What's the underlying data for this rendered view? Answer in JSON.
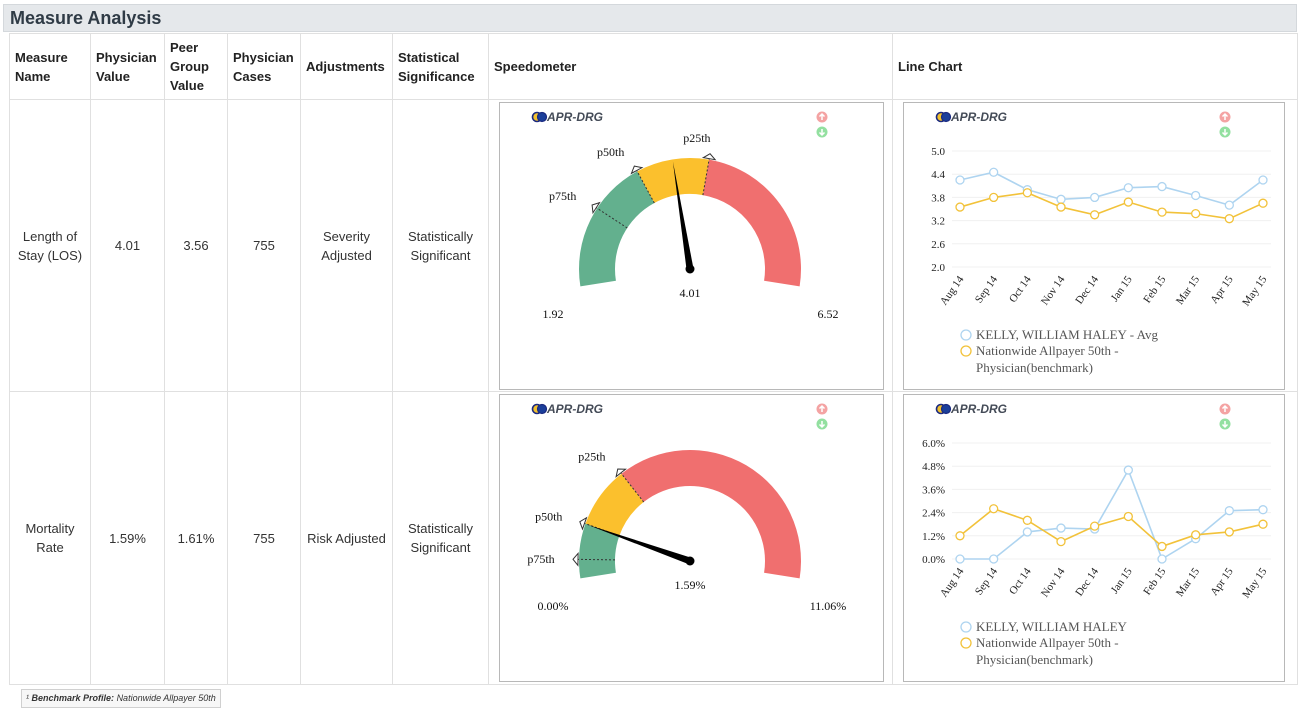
{
  "page_title": "Measure Analysis",
  "columns": {
    "measure_name": "Measure Name",
    "physician_value": "Physician Value",
    "peer_group_value": "Peer Group Value",
    "physician_cases": "Physician Cases",
    "adjustments": "Adjustments",
    "statistical_significance": "Statistical Significance",
    "speedometer": "Speedometer",
    "line_chart": "Line Chart"
  },
  "rows": [
    {
      "measure_name": "Length of Stay (LOS)",
      "physician_value": "4.01",
      "peer_group_value": "3.56",
      "physician_cases": "755",
      "adjustments": "Severity Adjusted",
      "statistical_significance": "Statistically Significant",
      "gauge": {
        "badge": "APR-DRG",
        "min_label": "1.92",
        "max_label": "6.52",
        "value_label": "4.01",
        "min": 1.92,
        "max": 6.52,
        "value": 4.01,
        "markers": [
          {
            "label": "p75th",
            "value": 2.9
          },
          {
            "label": "p50th",
            "value": 3.56
          },
          {
            "label": "p25th",
            "value": 4.45
          }
        ],
        "colors": {
          "green": "#63b08e",
          "yellow": "#fbc02d",
          "red": "#f06f6f"
        }
      },
      "chart_data": {
        "type": "line",
        "badge": "APR-DRG",
        "x": [
          "Aug 14",
          "Sep 14",
          "Oct 14",
          "Nov 14",
          "Dec 14",
          "Jan 15",
          "Feb 15",
          "Mar 15",
          "Apr 15",
          "May 15"
        ],
        "yticks": [
          "5.0",
          "4.4",
          "3.8",
          "3.2",
          "2.6",
          "2.0"
        ],
        "ylim": [
          2.0,
          5.0
        ],
        "series": [
          {
            "name": "KELLY, WILLIAM HALEY - Avg",
            "color": "#aed4f0",
            "values": [
              4.25,
              4.45,
              4.0,
              3.75,
              3.8,
              4.05,
              4.08,
              3.85,
              3.6,
              4.25
            ]
          },
          {
            "name": "Nationwide Allpayer 50th - Physician(benchmark)",
            "color": "#f2c23a",
            "values": [
              3.55,
              3.8,
              3.92,
              3.55,
              3.35,
              3.68,
              3.42,
              3.38,
              3.25,
              3.65
            ]
          }
        ]
      }
    },
    {
      "measure_name": "Mortality Rate",
      "physician_value": "1.59%",
      "peer_group_value": "1.61%",
      "physician_cases": "755",
      "adjustments": "Risk Adjusted",
      "statistical_significance": "Statistically Significant",
      "gauge": {
        "badge": "APR-DRG",
        "min_label": "0.00%",
        "max_label": "11.06%",
        "value_label": "1.59%",
        "min": 0,
        "max": 11.06,
        "value": 1.59,
        "markers": [
          {
            "label": "p75th",
            "value": 0.55
          },
          {
            "label": "p50th",
            "value": 1.6
          },
          {
            "label": "p25th",
            "value": 3.4
          }
        ],
        "colors": {
          "green": "#63b08e",
          "yellow": "#fbc02d",
          "red": "#f06f6f"
        }
      },
      "chart_data": {
        "type": "line",
        "badge": "APR-DRG",
        "x": [
          "Aug 14",
          "Sep 14",
          "Oct 14",
          "Nov 14",
          "Dec 14",
          "Jan 15",
          "Feb 15",
          "Mar 15",
          "Apr 15",
          "May 15"
        ],
        "yticks": [
          "6.0%",
          "4.8%",
          "3.6%",
          "2.4%",
          "1.2%",
          "0.0%"
        ],
        "ylim": [
          0,
          6.0
        ],
        "series": [
          {
            "name": "KELLY, WILLIAM HALEY",
            "color": "#aed4f0",
            "values": [
              0.0,
              0.0,
              1.4,
              1.6,
              1.55,
              4.6,
              0.0,
              1.05,
              2.5,
              2.55
            ]
          },
          {
            "name": "Nationwide Allpayer 50th - Physician(benchmark)",
            "color": "#f2c23a",
            "values": [
              1.2,
              2.6,
              2.0,
              0.9,
              1.7,
              2.2,
              0.65,
              1.25,
              1.4,
              1.8
            ]
          }
        ]
      }
    }
  ],
  "footer": {
    "superscript": "¹",
    "label": "Benchmark Profile:",
    "value": "Nationwide Allpayer 50th"
  }
}
